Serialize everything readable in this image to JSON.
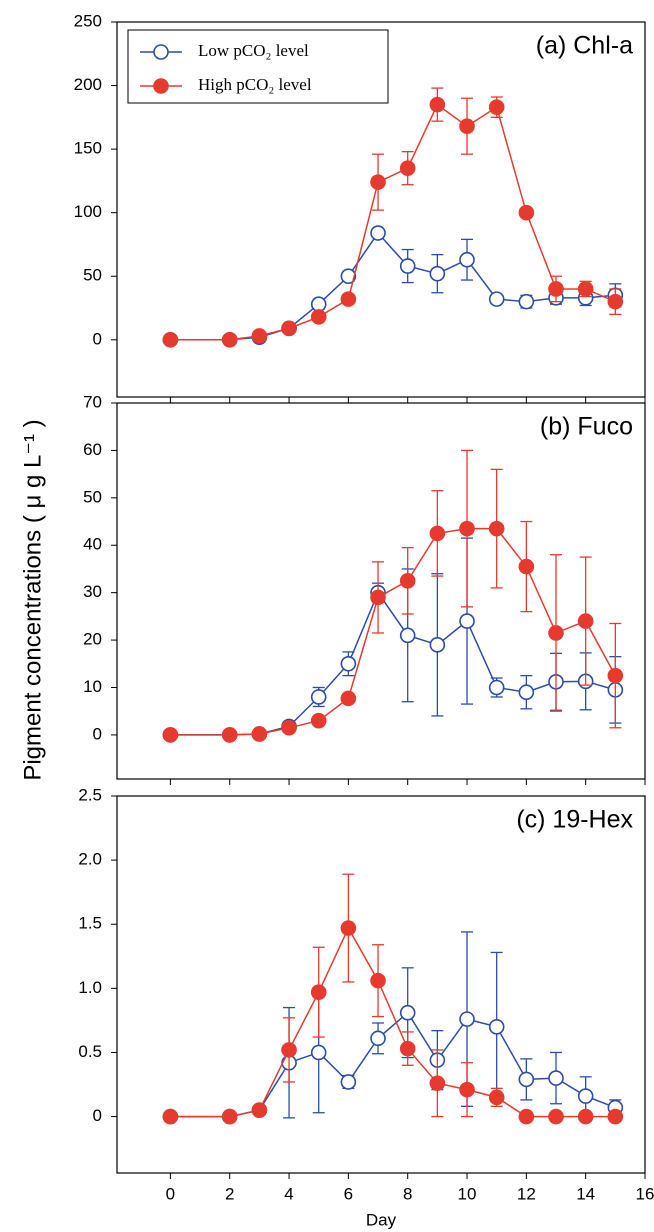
{
  "y_label": "Pigment  concentrations ( μ g L⁻¹ )",
  "chart_data": [
    {
      "type": "line",
      "title": "(a) Chl-a",
      "legend": "upper left",
      "x": [
        0,
        2,
        3,
        4,
        5,
        6,
        7,
        8,
        9,
        10,
        11,
        12,
        13,
        14,
        15
      ],
      "xlim": [
        -1.8,
        16
      ],
      "xticks": [
        0,
        2,
        4,
        6,
        8,
        10,
        12,
        14,
        16
      ],
      "x_tick_labels": false,
      "ylim": [
        -45,
        250
      ],
      "yticks": [
        0,
        50,
        100,
        150,
        200,
        250
      ],
      "series": [
        {
          "name": "Low pCO₂ level",
          "color": "#2a4ea6",
          "marker": "open",
          "values": [
            0,
            0,
            2,
            9,
            28,
            50,
            84,
            58,
            52,
            63,
            32,
            30,
            33,
            33,
            35
          ],
          "errors": [
            0,
            0,
            1,
            2,
            4,
            4,
            3,
            13,
            15,
            16,
            3,
            5,
            5,
            6,
            9
          ]
        },
        {
          "name": "High pCO₂ level",
          "color": "#e63a2e",
          "marker": "filled",
          "values": [
            0,
            0,
            3,
            9,
            18,
            32,
            124,
            135,
            185,
            168,
            183,
            100,
            40,
            40,
            30
          ],
          "errors": [
            0,
            0,
            1,
            1,
            1,
            1,
            22,
            13,
            13,
            22,
            8,
            0,
            10,
            6,
            10
          ]
        }
      ]
    },
    {
      "type": "line",
      "title": "(b) Fuco",
      "x": [
        0,
        2,
        3,
        4,
        5,
        6,
        7,
        8,
        9,
        10,
        11,
        12,
        13,
        14,
        15
      ],
      "xlim": [
        -1.8,
        16
      ],
      "xticks": [
        0,
        2,
        4,
        6,
        8,
        10,
        12,
        14,
        16
      ],
      "x_tick_labels": false,
      "ylim": [
        -9.3,
        70
      ],
      "yticks": [
        0,
        10,
        20,
        30,
        40,
        50,
        60,
        70
      ],
      "series": [
        {
          "color": "#2a4ea6",
          "marker": "open",
          "values": [
            0,
            0,
            0.2,
            1.8,
            8,
            15,
            30,
            21,
            19,
            24,
            10,
            9,
            11.2,
            11.3,
            9.5
          ],
          "errors": [
            0,
            0,
            0.2,
            0.3,
            2,
            2.5,
            2,
            14,
            15,
            17.5,
            2,
            3.5,
            6,
            6,
            7
          ]
        },
        {
          "color": "#e63a2e",
          "marker": "filled",
          "values": [
            0,
            0,
            0.2,
            1.5,
            3,
            7.7,
            29,
            32.5,
            42.5,
            43.5,
            43.5,
            35.5,
            21.5,
            24,
            12.5
          ],
          "errors": [
            0,
            0,
            0,
            0.3,
            0.3,
            0.3,
            7.5,
            7,
            9,
            16.5,
            12.5,
            9.5,
            16.5,
            13.5,
            11
          ]
        }
      ]
    },
    {
      "type": "line",
      "title": "(c) 19-Hex",
      "x_label": "Day",
      "x": [
        0,
        2,
        3,
        4,
        5,
        6,
        7,
        8,
        9,
        10,
        11,
        12,
        13,
        14,
        15
      ],
      "xlim": [
        -1.8,
        16
      ],
      "xticks": [
        0,
        2,
        4,
        6,
        8,
        10,
        12,
        14,
        16
      ],
      "x_tick_labels": true,
      "ylim": [
        -0.44,
        2.5
      ],
      "yticks": [
        0,
        0.5,
        {
          "value": 1,
          "label": "1.0"
        },
        1.5,
        {
          "value": 2,
          "label": "2.0"
        },
        2.5
      ],
      "series": [
        {
          "color": "#2a4ea6",
          "marker": "open",
          "values": [
            0,
            0,
            0.05,
            0.42,
            0.5,
            0.27,
            0.61,
            0.81,
            0.44,
            0.76,
            0.7,
            0.29,
            0.3,
            0.16,
            0.07
          ],
          "errors": [
            0,
            0,
            0.02,
            0.43,
            0.47,
            0.05,
            0.12,
            0.35,
            0.23,
            0.68,
            0.58,
            0.16,
            0.2,
            0.15,
            0.06
          ]
        },
        {
          "color": "#e63a2e",
          "marker": "filled",
          "values": [
            0,
            0,
            0.05,
            0.52,
            0.97,
            1.47,
            1.06,
            0.53,
            0.26,
            0.21,
            0.15,
            0,
            0,
            0,
            0
          ],
          "errors": [
            0,
            0,
            0.03,
            0.25,
            0.35,
            0.42,
            0.28,
            0.13,
            0.26,
            0.21,
            0.07,
            0,
            0,
            0,
            0
          ]
        }
      ]
    }
  ]
}
